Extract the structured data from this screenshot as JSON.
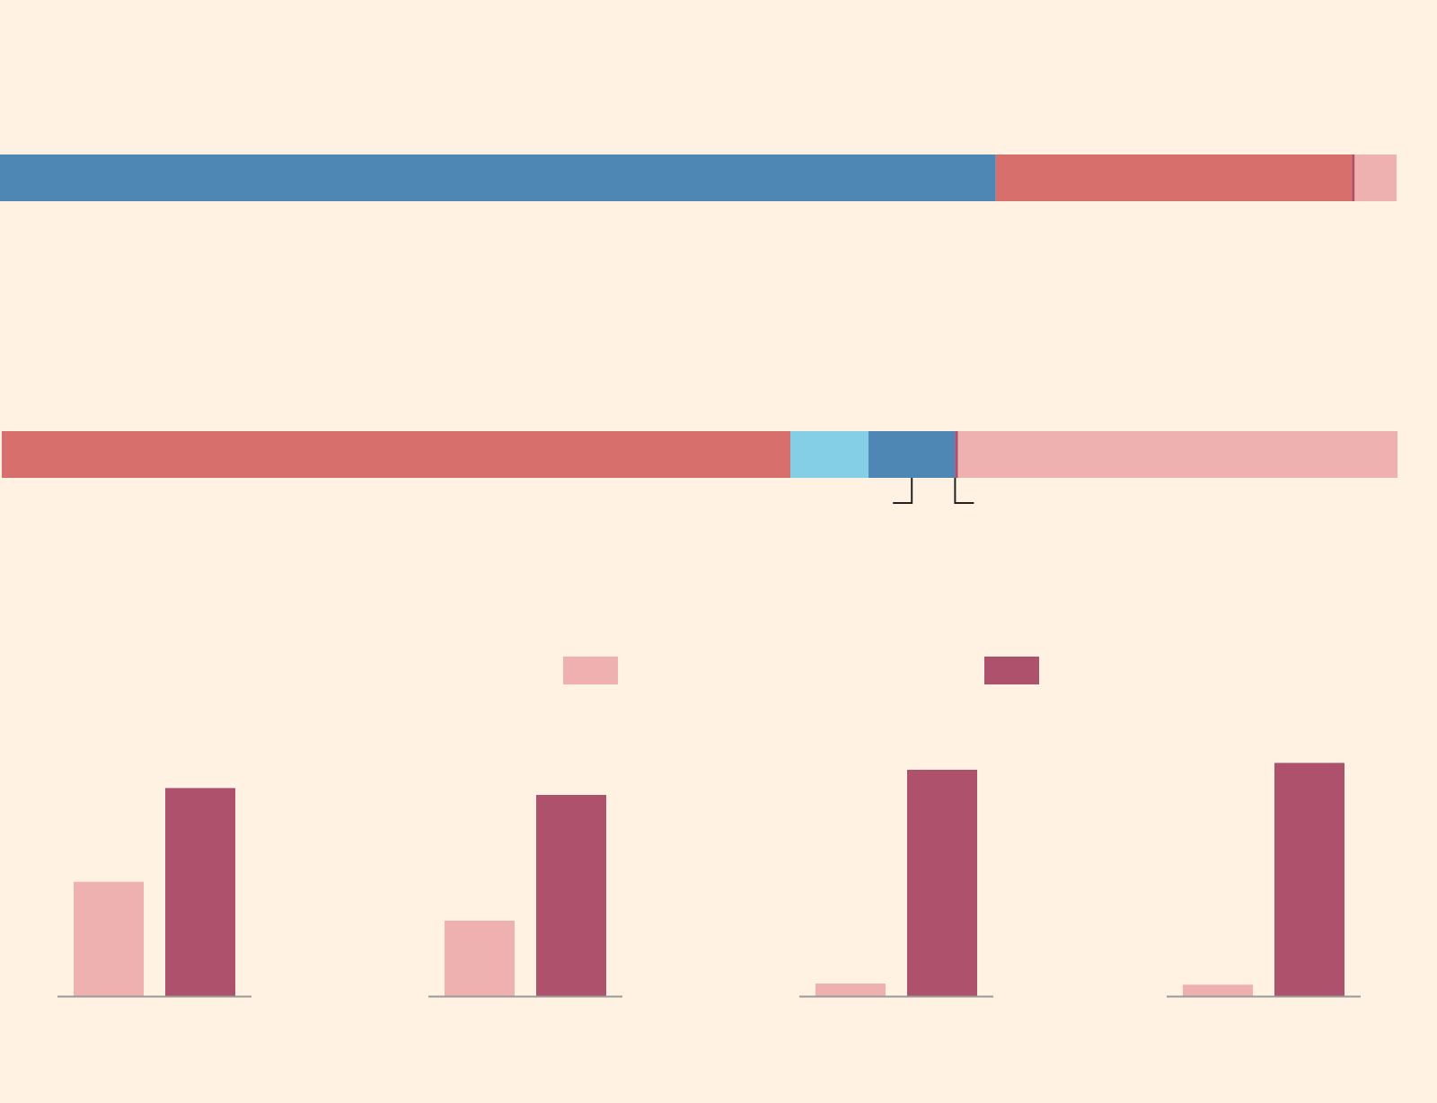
{
  "colors": {
    "background": "#fff2e2",
    "steel_blue": "#4f87b4",
    "coral": "#d7706d",
    "light_pink": "#efb1b0",
    "magenta": "#ad516d",
    "sky_blue": "#84cfe6",
    "baseline": "#999999",
    "bracket": "#222222"
  },
  "chart_data": [
    {
      "type": "bar",
      "orientation": "horizontal-stacked",
      "title": "",
      "xlim": [
        0,
        100
      ],
      "segments": [
        {
          "color_key": "steel_blue",
          "value": 71.3
        },
        {
          "color_key": "coral",
          "value": 25.5
        },
        {
          "color_key": "magenta",
          "value": 0.2
        },
        {
          "color_key": "light_pink",
          "value": 3.0
        }
      ]
    },
    {
      "type": "bar",
      "orientation": "horizontal-stacked",
      "title": "",
      "xlim": [
        0,
        100
      ],
      "segments": [
        {
          "color_key": "coral",
          "value": 56.5
        },
        {
          "color_key": "sky_blue",
          "value": 5.6
        },
        {
          "color_key": "steel_blue",
          "value": 6.2
        },
        {
          "color_key": "magenta",
          "value": 0.2
        },
        {
          "color_key": "light_pink",
          "value": 31.5
        }
      ],
      "annotation": {
        "type": "bracket",
        "segments": [
          "steel_blue",
          "magenta"
        ]
      }
    },
    {
      "type": "bar",
      "title": "",
      "legend": {
        "placement": "top-center",
        "entries": [
          {
            "color_key": "light_pink"
          },
          {
            "color_key": "magenta"
          }
        ]
      },
      "groups": 4,
      "series": [
        {
          "color_key": "light_pink",
          "values": [
            50,
            33,
            5.5,
            5
          ]
        },
        {
          "color_key": "magenta",
          "values": [
            91,
            88,
            99,
            102
          ]
        }
      ],
      "ylim": [
        0,
        110
      ],
      "grid": false
    }
  ]
}
